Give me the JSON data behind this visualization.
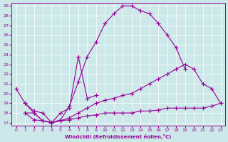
{
  "xlabel": "Windchill (Refroidissement éolien,°C)",
  "bg_color": "#cce8e8",
  "line_color": "#990099",
  "xlim": [
    -0.5,
    23.5
  ],
  "ylim": [
    16.7,
    29.3
  ],
  "yticks": [
    17,
    18,
    19,
    20,
    21,
    22,
    23,
    24,
    25,
    26,
    27,
    28,
    29
  ],
  "xticks": [
    0,
    1,
    2,
    3,
    4,
    5,
    6,
    7,
    8,
    9,
    10,
    11,
    12,
    13,
    14,
    15,
    16,
    17,
    18,
    19,
    20,
    21,
    22,
    23
  ],
  "lines": [
    {
      "x": [
        0,
        1,
        2,
        3,
        4,
        5,
        6,
        7,
        8,
        9,
        10,
        11,
        12,
        13,
        14,
        15,
        16,
        17,
        18,
        19
      ],
      "y": [
        20.5,
        19.0,
        18.0,
        17.2,
        17.0,
        17.3,
        18.7,
        21.2,
        23.8,
        25.3,
        27.2,
        28.2,
        29.0,
        29.0,
        28.5,
        28.2,
        27.2,
        26.0,
        24.7,
        22.5
      ]
    },
    {
      "x": [
        1,
        2,
        3,
        4,
        5,
        6,
        7,
        8,
        9
      ],
      "y": [
        19.0,
        18.2,
        18.0,
        17.0,
        18.0,
        18.5,
        23.8,
        19.5,
        19.8
      ]
    },
    {
      "x": [
        1,
        2,
        3,
        4,
        5,
        6,
        7,
        8,
        9,
        10,
        11,
        12,
        13,
        14,
        15,
        16,
        17,
        18,
        19,
        20,
        21,
        22,
        23
      ],
      "y": [
        18.0,
        18.0,
        17.2,
        17.0,
        17.2,
        17.5,
        18.0,
        18.5,
        19.0,
        19.3,
        19.5,
        19.8,
        20.0,
        20.5,
        21.0,
        21.5,
        22.0,
        22.5,
        23.0,
        22.5,
        21.0,
        20.5,
        19.0
      ]
    },
    {
      "x": [
        1,
        2,
        3,
        4,
        5,
        6,
        7,
        8,
        9,
        10,
        11,
        12,
        13,
        14,
        15,
        16,
        17,
        18,
        19,
        20,
        21,
        22,
        23
      ],
      "y": [
        18.0,
        17.3,
        17.2,
        17.0,
        17.2,
        17.3,
        17.5,
        17.7,
        17.8,
        18.0,
        18.0,
        18.0,
        18.0,
        18.2,
        18.2,
        18.3,
        18.5,
        18.5,
        18.5,
        18.5,
        18.5,
        18.7,
        19.0
      ]
    }
  ]
}
